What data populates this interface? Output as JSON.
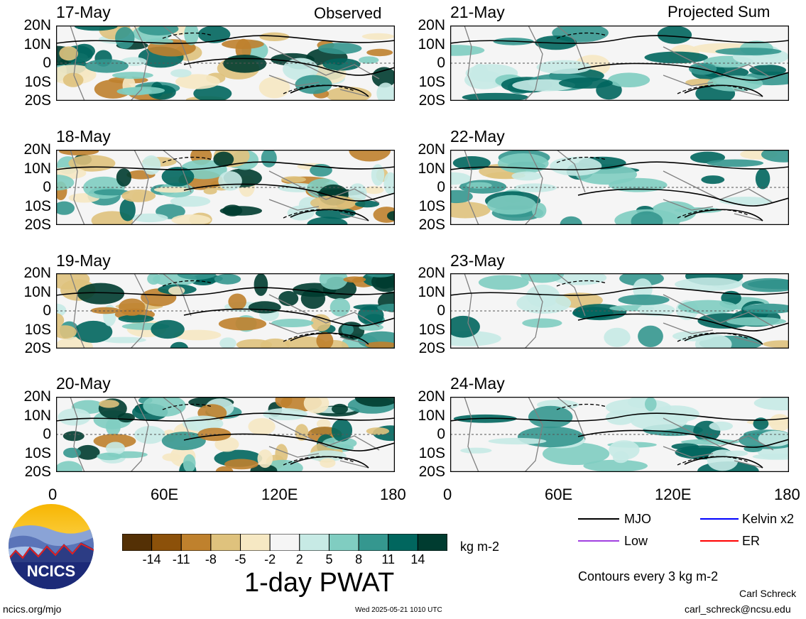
{
  "panel_headers": {
    "observed": "Observed",
    "projected": "Projected Sum"
  },
  "panels": {
    "left": [
      {
        "date": "17-May"
      },
      {
        "date": "18-May"
      },
      {
        "date": "19-May"
      },
      {
        "date": "20-May"
      }
    ],
    "right": [
      {
        "date": "21-May"
      },
      {
        "date": "22-May"
      },
      {
        "date": "23-May"
      },
      {
        "date": "24-May"
      }
    ]
  },
  "lat_labels": [
    "20N",
    "10N",
    "0",
    "10S",
    "20S"
  ],
  "lon_labels": [
    "0",
    "60E",
    "120E",
    "180"
  ],
  "colorbar": {
    "colors": [
      "#543005",
      "#8c510a",
      "#bf812d",
      "#dfc27d",
      "#f6e8c3",
      "#f5f5f5",
      "#c7eae5",
      "#80cdc1",
      "#35978f",
      "#01665e",
      "#003c30"
    ],
    "ticks": [
      "-14",
      "-11",
      "-8",
      "-5",
      "-2",
      "2",
      "5",
      "8",
      "11",
      "14"
    ],
    "units": "kg m-2",
    "title": "1-day PWAT"
  },
  "legend": {
    "items": [
      {
        "label": "MJO",
        "color": "#000000"
      },
      {
        "label": "Kelvin x2",
        "color": "#0000ff"
      },
      {
        "label": "Low",
        "color": "#a040e0"
      },
      {
        "label": "ER",
        "color": "#ff0000"
      }
    ],
    "contour_note": "Contours every 3 kg m-2"
  },
  "footer": {
    "logo_text": "NCICS",
    "site": "ncics.org/mjo",
    "timestamp": "Wed 2025-05-21 1010 UTC",
    "author": "Carl Schreck",
    "email": "carl_schreck@ncsu.edu"
  }
}
